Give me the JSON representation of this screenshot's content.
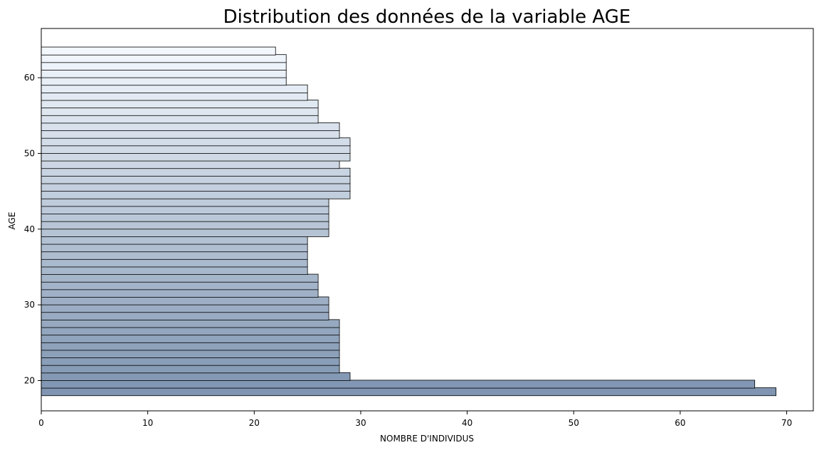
{
  "chart_data": {
    "type": "bar",
    "orientation": "horizontal",
    "title": "Distribution des données de la variable AGE",
    "xlabel": "NOMBRE D'INDIVIDUS",
    "ylabel": "AGE",
    "xlim": [
      0,
      72.5
    ],
    "ylim": [
      16,
      66.5
    ],
    "xticks": [
      0,
      10,
      20,
      30,
      40,
      50,
      60,
      70
    ],
    "yticks": [
      20,
      30,
      40,
      50,
      60
    ],
    "grid": false,
    "bar_edge_color": "#000000",
    "color_start": "#7f95b1",
    "color_end": "#f2f7fd",
    "categories": [
      18,
      19,
      20,
      21,
      22,
      23,
      24,
      25,
      26,
      27,
      28,
      29,
      30,
      31,
      32,
      33,
      34,
      35,
      36,
      37,
      38,
      39,
      40,
      41,
      42,
      43,
      44,
      45,
      46,
      47,
      48,
      49,
      50,
      51,
      52,
      53,
      54,
      55,
      56,
      57,
      58,
      59,
      60,
      61,
      62,
      63
    ],
    "values": [
      69,
      67,
      29,
      28,
      28,
      28,
      28,
      28,
      28,
      28,
      27,
      27,
      27,
      26,
      26,
      26,
      25,
      25,
      25,
      25,
      25,
      27,
      27,
      27,
      27,
      27,
      29,
      29,
      29,
      29,
      28,
      29,
      29,
      29,
      28,
      28,
      26,
      26,
      26,
      25,
      25,
      23,
      23,
      23,
      23,
      22
    ]
  }
}
